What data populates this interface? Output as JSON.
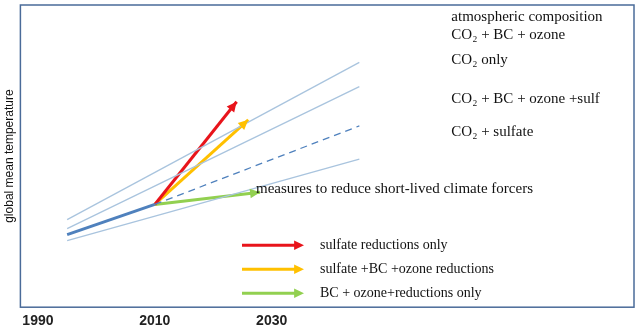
{
  "chart_data": {
    "type": "line",
    "ylabel": "global mean temperature",
    "annotations": [
      "atmospheric composition",
      "measures to reduce short-lived climate forcers"
    ],
    "xlim": [
      1987,
      2092
    ],
    "xticks": [
      1990,
      2010,
      2030
    ],
    "ylim": [
      0,
      10
    ],
    "yticks": [],
    "grid": false,
    "tick_labels": "x",
    "legend": "lower right",
    "series": [
      {
        "name": "CO₂ + BC + ozone",
        "color": "#a9c4de",
        "x": [
          1995,
          2045
        ],
        "values": [
          2.9,
          8.1
        ],
        "line_style": "solid"
      },
      {
        "name": "CO₂ only",
        "color": "#a9c4de",
        "x": [
          1995,
          2045
        ],
        "values": [
          2.6,
          7.3
        ],
        "line_style": "solid"
      },
      {
        "name": "CO₂ + BC + ozone +sulf",
        "color": "#4f81bd",
        "x": [
          2010,
          2045
        ],
        "values": [
          3.4,
          6.0
        ],
        "line_style": "dashed"
      },
      {
        "name": "CO₂ + sulfate",
        "color": "#a9c4de",
        "x": [
          1995,
          2045
        ],
        "values": [
          2.2,
          4.9
        ],
        "line_style": "solid"
      },
      {
        "color": "#4f81bd",
        "x": [
          1995,
          2010
        ],
        "values": [
          2.4,
          3.4
        ],
        "line_style": "solid"
      },
      {
        "name": "sulfate reductions only",
        "color": "#e8141b",
        "x": [
          2010,
          2024
        ],
        "values": [
          3.4,
          6.8
        ],
        "marker": "arrow"
      },
      {
        "name": "sulfate +BC +ozone reductions",
        "color": "#ffc000",
        "x": [
          2010,
          2026
        ],
        "values": [
          3.4,
          6.2
        ],
        "marker": "arrow"
      },
      {
        "name": "BC + ozone+reductions only",
        "color": "#92d050",
        "x": [
          2010,
          2028
        ],
        "values": [
          3.4,
          3.8
        ],
        "marker": "arrow"
      }
    ]
  }
}
